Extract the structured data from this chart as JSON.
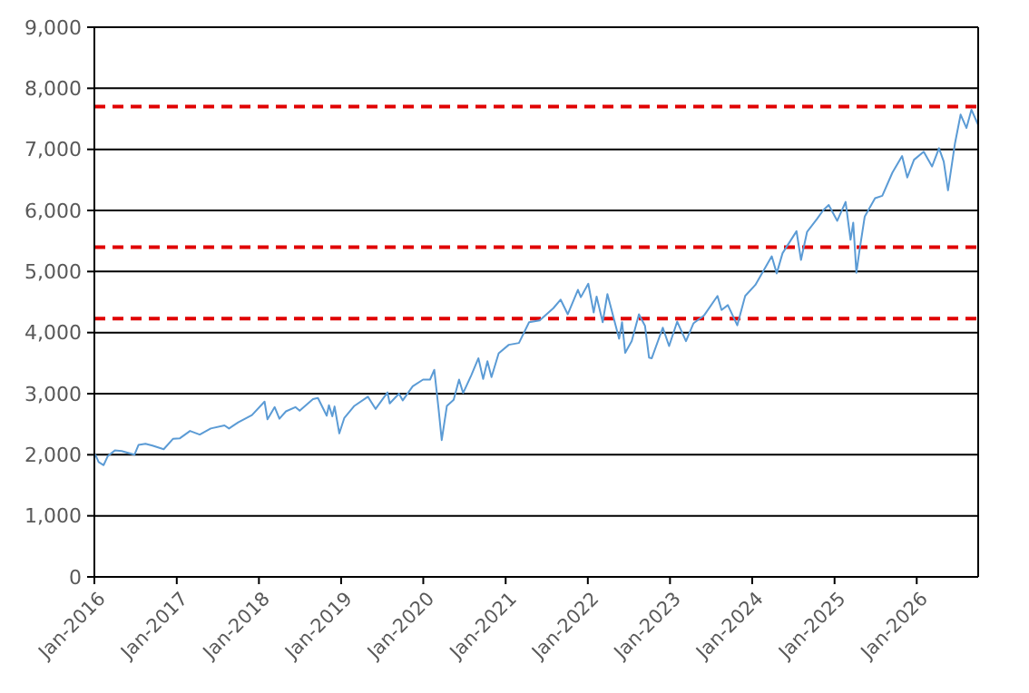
{
  "chart_data": {
    "type": "line",
    "xlim": [
      "2016-01-01",
      "2026-10-01"
    ],
    "ylim": [
      0,
      9000
    ],
    "xticks": [
      {
        "value": "2016-01-01",
        "label": "Jan-2016"
      },
      {
        "value": "2017-01-01",
        "label": "Jan-2017"
      },
      {
        "value": "2018-01-01",
        "label": "Jan-2018"
      },
      {
        "value": "2019-01-01",
        "label": "Jan-2019"
      },
      {
        "value": "2020-01-01",
        "label": "Jan-2020"
      },
      {
        "value": "2021-01-01",
        "label": "Jan-2021"
      },
      {
        "value": "2022-01-01",
        "label": "Jan-2022"
      },
      {
        "value": "2023-01-01",
        "label": "Jan-2023"
      },
      {
        "value": "2024-01-01",
        "label": "Jan-2024"
      },
      {
        "value": "2025-01-01",
        "label": "Jan-2025"
      },
      {
        "value": "2026-01-01",
        "label": "Jan-2026"
      }
    ],
    "yticks": [
      0,
      {
        "value": 1000,
        "label": "1,000"
      },
      {
        "value": 2000,
        "label": "2,000"
      },
      {
        "value": 3000,
        "label": "3,000"
      },
      {
        "value": 4000,
        "label": "4,000"
      },
      {
        "value": 5000,
        "label": "5,000"
      },
      {
        "value": 6000,
        "label": "6,000"
      },
      {
        "value": 7000,
        "label": "7,000"
      },
      {
        "value": 8000,
        "label": "8,000"
      },
      {
        "value": 9000,
        "label": "9,000"
      }
    ],
    "grid": "y",
    "line_style": "solid",
    "ref_lines": [
      {
        "axis": "y",
        "value": 7700,
        "color": "#e00000",
        "line_style": "dashed"
      },
      {
        "axis": "y",
        "value": 5400,
        "color": "#e00000",
        "line_style": "dashed"
      },
      {
        "axis": "y",
        "value": 4230,
        "color": "#e00000",
        "line_style": "dashed"
      }
    ],
    "series": [
      {
        "color": "#5b9bd5",
        "x": [
          "2016-01-04",
          "2016-01-20",
          "2016-02-11",
          "2016-03-01",
          "2016-04-01",
          "2016-05-01",
          "2016-06-27",
          "2016-07-15",
          "2016-08-15",
          "2016-09-15",
          "2016-11-04",
          "2016-12-15",
          "2017-01-15",
          "2017-03-01",
          "2017-04-13",
          "2017-06-01",
          "2017-08-01",
          "2017-08-21",
          "2017-10-01",
          "2017-12-01",
          "2018-01-26",
          "2018-02-08",
          "2018-03-12",
          "2018-04-02",
          "2018-05-01",
          "2018-06-12",
          "2018-07-01",
          "2018-08-29",
          "2018-09-20",
          "2018-10-29",
          "2018-11-08",
          "2018-11-23",
          "2018-12-03",
          "2018-12-24",
          "2019-01-15",
          "2019-03-01",
          "2019-04-30",
          "2019-06-03",
          "2019-07-26",
          "2019-08-05",
          "2019-09-15",
          "2019-10-02",
          "2019-11-15",
          "2019-12-31",
          "2020-01-31",
          "2020-02-19",
          "2020-03-09",
          "2020-03-23",
          "2020-04-15",
          "2020-05-15",
          "2020-06-08",
          "2020-06-26",
          "2020-08-01",
          "2020-09-02",
          "2020-09-23",
          "2020-10-12",
          "2020-10-30",
          "2020-12-01",
          "2021-01-15",
          "2021-03-01",
          "2021-04-15",
          "2021-06-01",
          "2021-08-01",
          "2021-09-02",
          "2021-10-04",
          "2021-11-18",
          "2021-12-01",
          "2022-01-03",
          "2022-01-27",
          "2022-02-09",
          "2022-03-08",
          "2022-03-29",
          "2022-05-20",
          "2022-06-02",
          "2022-06-16",
          "2022-07-15",
          "2022-08-16",
          "2022-09-12",
          "2022-09-30",
          "2022-10-12",
          "2022-11-30",
          "2022-12-28",
          "2023-02-02",
          "2023-03-13",
          "2023-04-15",
          "2023-06-01",
          "2023-07-31",
          "2023-08-18",
          "2023-09-15",
          "2023-10-27",
          "2023-12-01",
          "2024-01-15",
          "2024-03-28",
          "2024-04-19",
          "2024-05-15",
          "2024-07-16",
          "2024-08-05",
          "2024-09-01",
          "2024-10-15",
          "2024-11-11",
          "2024-12-06",
          "2025-01-13",
          "2025-02-19",
          "2025-03-13",
          "2025-03-25",
          "2025-04-08",
          "2025-04-20",
          "2025-05-15",
          "2025-06-30",
          "2025-08-01",
          "2025-09-15",
          "2025-10-28",
          "2025-11-20",
          "2025-12-20",
          "2026-02-01",
          "2026-03-10",
          "2026-04-10",
          "2026-05-01",
          "2026-05-20",
          "2026-06-20",
          "2026-07-15",
          "2026-08-10",
          "2026-09-01",
          "2026-10-01"
        ],
        "values": [
          2010,
          1880,
          1830,
          1980,
          2070,
          2060,
          2000,
          2160,
          2180,
          2150,
          2090,
          2260,
          2270,
          2390,
          2330,
          2430,
          2480,
          2430,
          2530,
          2650,
          2870,
          2580,
          2780,
          2590,
          2710,
          2780,
          2720,
          2910,
          2930,
          2640,
          2810,
          2630,
          2790,
          2350,
          2600,
          2800,
          2950,
          2750,
          3020,
          2840,
          3000,
          2890,
          3120,
          3230,
          3230,
          3390,
          2750,
          2240,
          2800,
          2900,
          3230,
          3010,
          3300,
          3580,
          3240,
          3530,
          3270,
          3660,
          3800,
          3830,
          4170,
          4200,
          4400,
          4540,
          4300,
          4700,
          4580,
          4800,
          4330,
          4590,
          4170,
          4630,
          3900,
          4170,
          3670,
          3860,
          4300,
          4110,
          3590,
          3580,
          4080,
          3780,
          4180,
          3860,
          4150,
          4280,
          4600,
          4370,
          4450,
          4120,
          4600,
          4780,
          5250,
          4970,
          5300,
          5660,
          5190,
          5650,
          5860,
          6000,
          6090,
          5830,
          6140,
          5520,
          5800,
          4980,
          5300,
          5900,
          6200,
          6240,
          6620,
          6890,
          6540,
          6830,
          6960,
          6720,
          7020,
          6800,
          6330,
          7100,
          7570,
          7350,
          7650,
          7400
        ]
      }
    ]
  }
}
